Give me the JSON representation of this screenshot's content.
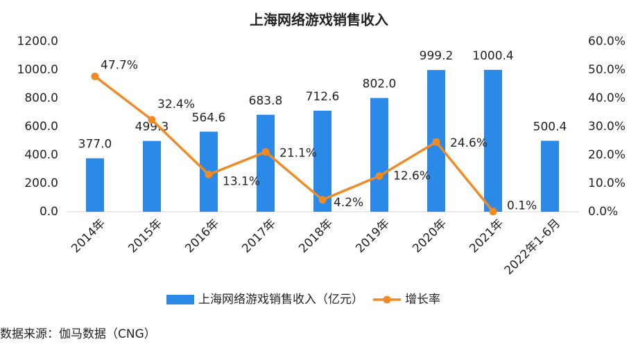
{
  "chart_data": {
    "type": "bar_line",
    "title": "上海网络游戏销售收入",
    "categories": [
      "2014年",
      "2015年",
      "2016年",
      "2017年",
      "2018年",
      "2019年",
      "2020年",
      "2021年",
      "2022年1-6月"
    ],
    "series": [
      {
        "name": "上海网络游戏销售收入（亿元）",
        "type": "bar",
        "color": "#2b8ae8",
        "axis": "y",
        "values": [
          377.0,
          499.3,
          564.6,
          683.8,
          712.6,
          802.0,
          999.2,
          1000.4,
          500.4
        ],
        "value_labels": [
          "377.0",
          "499.3",
          "564.6",
          "683.8",
          "712.6",
          "802.0",
          "999.2",
          "1000.4",
          "500.4"
        ]
      },
      {
        "name": "增长率",
        "type": "line",
        "color": "#f08a24",
        "axis": "y2",
        "values": [
          47.7,
          32.4,
          13.1,
          21.1,
          4.2,
          12.6,
          24.6,
          0.1,
          null
        ],
        "value_labels": [
          "47.7%",
          "32.4%",
          "13.1%",
          "21.1%",
          "4.2%",
          "12.6%",
          "24.6%",
          "0.1%",
          null
        ]
      }
    ],
    "ylim": [
      0,
      1200
    ],
    "yticks": [
      {
        "value": 0,
        "label": "0.0"
      },
      {
        "value": 200,
        "label": "200.0"
      },
      {
        "value": 400,
        "label": "400.0"
      },
      {
        "value": 600,
        "label": "600.0"
      },
      {
        "value": 800,
        "label": "800.0"
      },
      {
        "value": 1000,
        "label": "1000.0"
      },
      {
        "value": 1200,
        "label": "1200.0"
      }
    ],
    "y2lim": [
      0,
      60
    ],
    "y2ticks": [
      {
        "value": 0,
        "label": "0.0%"
      },
      {
        "value": 10,
        "label": "10.0%"
      },
      {
        "value": 20,
        "label": "20.0%"
      },
      {
        "value": 30,
        "label": "30.0%"
      },
      {
        "value": 40,
        "label": "40.0%"
      },
      {
        "value": 50,
        "label": "50.0%"
      },
      {
        "value": 60,
        "label": "60.0%"
      }
    ],
    "legend": "bottom",
    "source": "数据来源：伽马数据（CNG）"
  }
}
